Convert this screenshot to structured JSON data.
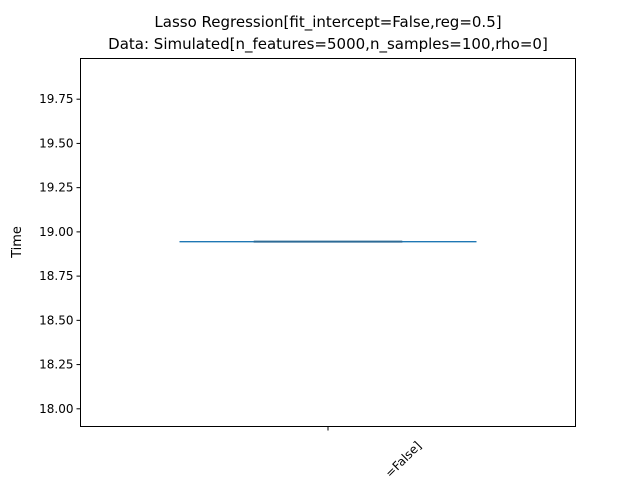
{
  "chart_data": {
    "type": "box",
    "title": "Lasso Regression[fit_intercept=False,reg=0.5]",
    "subtitle": "Data: Simulated[n_features=5000,n_samples=100,rho=0]",
    "xlabel": "",
    "ylabel": "Time",
    "ylim": [
      17.9,
      19.98
    ],
    "yticks": [
      18.0,
      18.25,
      18.5,
      18.75,
      19.0,
      19.25,
      19.5,
      19.75
    ],
    "ytick_labels": [
      "18.00",
      "18.25",
      "18.50",
      "18.75",
      "19.00",
      "19.25",
      "19.50",
      "19.75"
    ],
    "categories": [
      "=False]"
    ],
    "series": [
      {
        "values": [
          18.945
        ],
        "box": {
          "min": 18.945,
          "q1": 18.945,
          "median": 18.945,
          "q3": 18.945,
          "max": 18.945
        }
      }
    ],
    "grid": false,
    "colors": {
      "box": "#1f77b4",
      "median": "#2d6b96",
      "axes": "#000000"
    }
  }
}
